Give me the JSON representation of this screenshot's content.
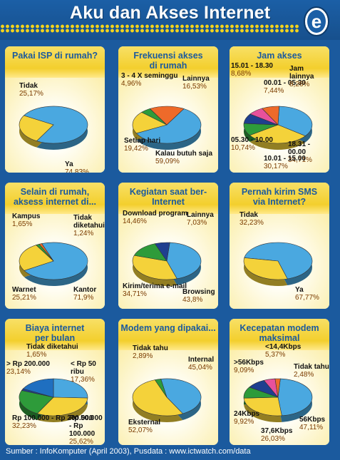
{
  "header": {
    "title": "Aku dan Akses Internet",
    "logo_letter": "e"
  },
  "footer": {
    "source": "Sumber : InfoKomputer (April 2003), Pusdata : www.ictwatch.com/data"
  },
  "chart_data": [
    {
      "type": "pie",
      "title": "Pakai ISP di rumah?",
      "slices": [
        {
          "label": "Ya",
          "pct": "74,83%",
          "value": 74.83,
          "color": "#4aa8e0"
        },
        {
          "label": "Tidak",
          "pct": "25,17%",
          "value": 25.17,
          "color": "#f4d23a"
        }
      ]
    },
    {
      "type": "pie",
      "title": "Frekuensi akses di rumah",
      "slices": [
        {
          "label": "Kalau butuh saja",
          "pct": "59,09%",
          "value": 59.09,
          "color": "#4aa8e0"
        },
        {
          "label": "Setiap hari",
          "pct": "19,42%",
          "value": 19.42,
          "color": "#f4d23a"
        },
        {
          "label": "3 - 4 X seminggu",
          "pct": "4,96%",
          "value": 4.96,
          "color": "#2e9b3a"
        },
        {
          "label": "Lainnya",
          "pct": "16,53%",
          "value": 16.53,
          "color": "#ee6a2a"
        }
      ]
    },
    {
      "type": "pie",
      "title": "Jam akses",
      "slices": [
        {
          "label": "18.31 - 00.00",
          "pct": "34,71%",
          "value": 34.71,
          "color": "#4aa8e0"
        },
        {
          "label": "10.01 - 15.00",
          "pct": "30,17%",
          "value": 30.17,
          "color": "#f4d23a"
        },
        {
          "label": "05.30 - 10.00",
          "pct": "10,74%",
          "value": 10.74,
          "color": "#2e9b3a"
        },
        {
          "label": "15.01 - 18.30",
          "pct": "8,68%",
          "value": 8.68,
          "color": "#1f3f8f"
        },
        {
          "label": "00.01 - 05.30",
          "pct": "7,44%",
          "value": 7.44,
          "color": "#e8519b"
        },
        {
          "label": "Jam lainnya",
          "pct": "8,26%",
          "value": 8.26,
          "color": "#ee6a2a"
        }
      ]
    },
    {
      "type": "pie",
      "title": "Selain di rumah, aksess internet di...",
      "slices": [
        {
          "label": "Kantor",
          "pct": "71,9%",
          "value": 71.9,
          "color": "#4aa8e0"
        },
        {
          "label": "Warnet",
          "pct": "25,21%",
          "value": 25.21,
          "color": "#f4d23a"
        },
        {
          "label": "Kampus",
          "pct": "1,65%",
          "value": 1.65,
          "color": "#2e9b3a"
        },
        {
          "label": "Tidak diketahui",
          "pct": "1,24%",
          "value": 1.24,
          "color": "#ee6a2a"
        }
      ]
    },
    {
      "type": "pie",
      "title": "Kegiatan saat ber-Internet",
      "slices": [
        {
          "label": "Browsing",
          "pct": "43,8%",
          "value": 43.8,
          "color": "#4aa8e0"
        },
        {
          "label": "Kirim/terima e-mail",
          "pct": "34,71%",
          "value": 34.71,
          "color": "#f4d23a"
        },
        {
          "label": "Download program",
          "pct": "14,46%",
          "value": 14.46,
          "color": "#2e9b3a"
        },
        {
          "label": "Lainnya",
          "pct": "7,03%",
          "value": 7.03,
          "color": "#1f3f8f"
        }
      ]
    },
    {
      "type": "pie",
      "title": "Pernah kirim SMS via Internet?",
      "slices": [
        {
          "label": "Ya",
          "pct": "67,77%",
          "value": 67.77,
          "color": "#4aa8e0"
        },
        {
          "label": "Tidak",
          "pct": "32,23%",
          "value": 32.23,
          "color": "#f4d23a"
        }
      ]
    },
    {
      "type": "pie",
      "title": "Biaya internet per bulan",
      "slices": [
        {
          "label": "Rp 50.000 - Rp 100.000",
          "pct": "25,62%",
          "value": 25.62,
          "color": "#4aa8e0"
        },
        {
          "label": "Rp 100.000 - Rp 200.000",
          "pct": "32,23%",
          "value": 32.23,
          "color": "#f4d23a"
        },
        {
          "label": "> Rp 200.000",
          "pct": "23,14%",
          "value": 23.14,
          "color": "#2e9b3a"
        },
        {
          "label": "Tidak diketahui",
          "pct": "1,65%",
          "value": 1.65,
          "color": "#1f3f8f"
        },
        {
          "label": "< Rp 50 ribu",
          "pct": "17,36%",
          "value": 17.36,
          "color": "#1f6fc0"
        }
      ]
    },
    {
      "type": "pie",
      "title": "Modem yang dipakai...",
      "slices": [
        {
          "label": "Internal",
          "pct": "45,04%",
          "value": 45.04,
          "color": "#4aa8e0"
        },
        {
          "label": "Eksternal",
          "pct": "52,07%",
          "value": 52.07,
          "color": "#f4d23a"
        },
        {
          "label": "Tidak tahu",
          "pct": "2,89%",
          "value": 2.89,
          "color": "#2e9b3a"
        }
      ]
    },
    {
      "type": "pie",
      "title": "Kecepatan modem maksimal",
      "slices": [
        {
          "label": "56Kbps",
          "pct": "47,11%",
          "value": 47.11,
          "color": "#4aa8e0"
        },
        {
          "label": "37,6Kbps",
          "pct": "26,03%",
          "value": 26.03,
          "color": "#f4d23a"
        },
        {
          "label": "24Kbps",
          "pct": "9,92%",
          "value": 9.92,
          "color": "#2e9b3a"
        },
        {
          "label": ">56Kbps",
          "pct": "9,09%",
          "value": 9.09,
          "color": "#1f3f8f"
        },
        {
          "label": "<14,4Kbps",
          "pct": "5,37%",
          "value": 5.37,
          "color": "#e8519b"
        },
        {
          "label": "Tidak tahu",
          "pct": "2,48%",
          "value": 2.48,
          "color": "#ee6a2a"
        }
      ]
    }
  ]
}
